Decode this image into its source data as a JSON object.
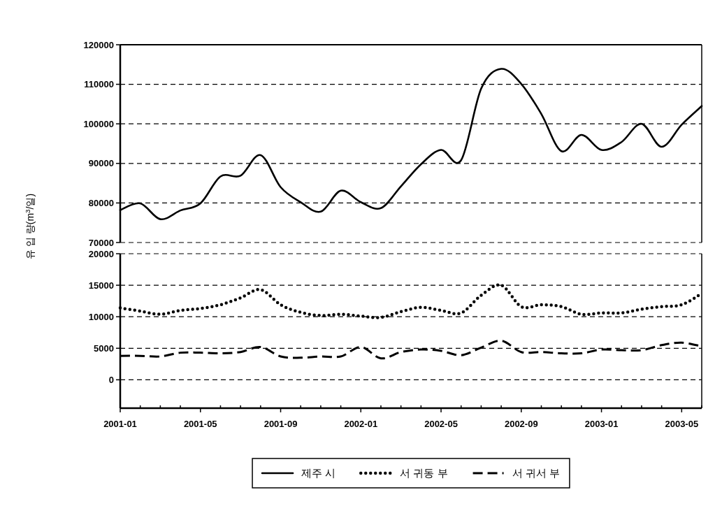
{
  "chart_data": [
    {
      "type": "line",
      "ylabel": "유 입 량(m$^{3}$/일)",
      "x": [
        "2001-01",
        "2001-02",
        "2001-03",
        "2001-04",
        "2001-05",
        "2001-06",
        "2001-07",
        "2001-08",
        "2001-09",
        "2001-10",
        "2001-11",
        "2001-12",
        "2002-01",
        "2002-02",
        "2002-03",
        "2002-04",
        "2002-05",
        "2002-06",
        "2002-07",
        "2002-08",
        "2002-09",
        "2002-10",
        "2002-11",
        "2002-12",
        "2003-01",
        "2003-02",
        "2003-03",
        "2003-04",
        "2003-05",
        "2003-06"
      ],
      "series": [
        {
          "name": "제주 시",
          "color": "#000000",
          "line_style": "solid",
          "values": [
            78200,
            79900,
            75900,
            78100,
            79900,
            86700,
            86900,
            92100,
            84000,
            80200,
            77800,
            83100,
            80200,
            78700,
            84200,
            89800,
            93400,
            90800,
            108900,
            113900,
            110100,
            102500,
            93100,
            97200,
            93400,
            95400,
            100000,
            94200,
            99800,
            104500
          ]
        }
      ],
      "xlim": [
        "2001-01",
        "2003-06"
      ],
      "ylim": [
        70000,
        120000
      ],
      "yticks": [
        70000,
        80000,
        90000,
        100000,
        110000,
        120000
      ],
      "tick_labels": "y",
      "grid": "y",
      "legend": "bottom"
    },
    {
      "type": "line",
      "x": [
        "2001-01",
        "2001-02",
        "2001-03",
        "2001-04",
        "2001-05",
        "2001-06",
        "2001-07",
        "2001-08",
        "2001-09",
        "2001-10",
        "2001-11",
        "2001-12",
        "2002-01",
        "2002-02",
        "2002-03",
        "2002-04",
        "2002-05",
        "2002-06",
        "2002-07",
        "2002-08",
        "2002-09",
        "2002-10",
        "2002-11",
        "2002-12",
        "2003-01",
        "2003-02",
        "2003-03",
        "2003-04",
        "2003-05",
        "2003-06"
      ],
      "series": [
        {
          "name": "서 귀동 부",
          "color": "#000000",
          "line_style": "dotted",
          "values": [
            11400,
            10900,
            10400,
            11000,
            11300,
            11900,
            13000,
            14300,
            11900,
            10700,
            10200,
            10400,
            10100,
            9900,
            10800,
            11500,
            11000,
            10600,
            13400,
            15000,
            11600,
            11900,
            11600,
            10400,
            10600,
            10600,
            11200,
            11600,
            11900,
            13700
          ]
        },
        {
          "name": "서 귀서 부",
          "color": "#000000",
          "line_style": "dashed",
          "values": [
            3800,
            3800,
            3700,
            4300,
            4300,
            4200,
            4400,
            5200,
            3700,
            3500,
            3700,
            3700,
            5200,
            3400,
            4400,
            4800,
            4600,
            3900,
            5100,
            6200,
            4400,
            4400,
            4200,
            4200,
            4800,
            4700,
            4700,
            5500,
            5900,
            5300
          ]
        }
      ],
      "xlim": [
        "2001-01",
        "2003-06"
      ],
      "ylim": [
        -4500,
        20000
      ],
      "yticks": [
        0,
        5000,
        10000,
        15000,
        20000
      ],
      "xticks": [
        {
          "value": "2001-01",
          "label": "2001-01"
        },
        {
          "value": "2001-02",
          "label": null
        },
        {
          "value": "2001-03",
          "label": null
        },
        {
          "value": "2001-04",
          "label": null
        },
        {
          "value": "2001-05",
          "label": "2001-05"
        },
        {
          "value": "2001-06",
          "label": null
        },
        {
          "value": "2001-07",
          "label": null
        },
        {
          "value": "2001-08",
          "label": null
        },
        {
          "value": "2001-09",
          "label": "2001-09"
        },
        {
          "value": "2001-10",
          "label": null
        },
        {
          "value": "2001-11",
          "label": null
        },
        {
          "value": "2001-12",
          "label": null
        },
        {
          "value": "2002-01",
          "label": "2002-01"
        },
        {
          "value": "2002-02",
          "label": null
        },
        {
          "value": "2002-03",
          "label": null
        },
        {
          "value": "2002-04",
          "label": null
        },
        {
          "value": "2002-05",
          "label": "2002-05"
        },
        {
          "value": "2002-06",
          "label": null
        },
        {
          "value": "2002-07",
          "label": null
        },
        {
          "value": "2002-08",
          "label": null
        },
        {
          "value": "2002-09",
          "label": "2002-09"
        },
        {
          "value": "2002-10",
          "label": null
        },
        {
          "value": "2002-11",
          "label": null
        },
        {
          "value": "2002-12",
          "label": null
        },
        {
          "value": "2003-01",
          "label": "2003-01"
        },
        {
          "value": "2003-02",
          "label": null
        },
        {
          "value": "2003-03",
          "label": null
        },
        {
          "value": "2003-04",
          "label": null
        },
        {
          "value": "2003-05",
          "label": "2003-05"
        },
        {
          "value": "2003-06",
          "label": null
        }
      ],
      "grid": "y",
      "legend": "bottom"
    }
  ]
}
